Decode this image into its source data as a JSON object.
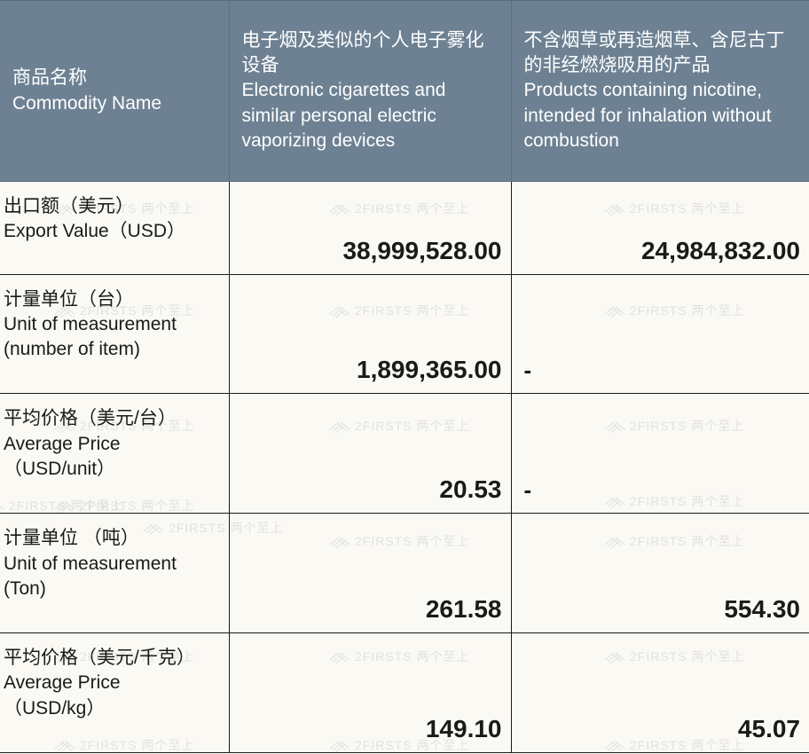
{
  "header": {
    "col1_cn": "商品名称",
    "col1_en": "Commodity Name",
    "col2_cn": "电子烟及类似的个人电子雾化设备",
    "col2_en": "Electronic cigarettes and similar personal electric vaporizing devices",
    "col3_cn": "不含烟草或再造烟草、含尼古丁的非经燃烧吸用的产品",
    "col3_en": "Products containing nicotine, intended for inhalation without combustion"
  },
  "rows": [
    {
      "label_cn": "出口额（美元）",
      "label_en": " Export Value（USD）",
      "v1": "38,999,528.00",
      "v2": "24,984,832.00"
    },
    {
      "label_cn": "计量单位（台）",
      "label_en": "Unit of measurement",
      "label_en2": "(number of item)",
      "v1": "1,899,365.00",
      "v2": "-"
    },
    {
      "label_cn": "平均价格（美元/台）",
      "label_en": "Average Price",
      "label_en2": "（USD/unit）",
      "v1": "20.53",
      "v2": "-"
    },
    {
      "label_cn": "计量单位 （吨）",
      "label_en": "Unit of measurement",
      "label_en2": "(Ton)",
      "v1": "261.58",
      "v2": "554.30"
    },
    {
      "label_cn": "平均价格（美元/千克）",
      "label_en": "Average Price",
      "label_en2": "（USD/kg）",
      "v1": "149.10",
      "v2": "45.07"
    }
  ],
  "watermark": {
    "text": "2FIRSTS 两个至上"
  },
  "colors": {
    "header_bg": "#6d8193",
    "header_text": "#ffffff",
    "body_bg": "#faf9f4",
    "text": "#1a1a1a",
    "border": "#1a1a1a",
    "watermark": "#d8d8d8"
  }
}
